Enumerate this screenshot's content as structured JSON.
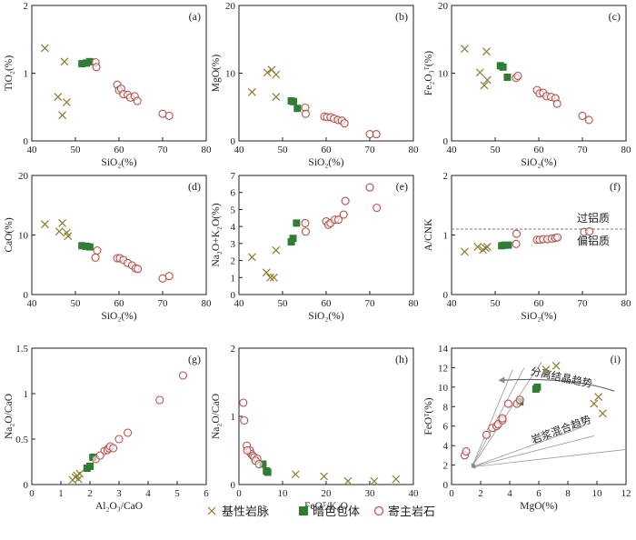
{
  "colors": {
    "basic_vein": "#8b7a2e",
    "dark_enclave": "#2e7d32",
    "host_rock": "#b5514b",
    "axis": "#222222",
    "trend_arrow": "#9a9a9a"
  },
  "legend": [
    {
      "label": "基性岩脉",
      "marker": "x"
    },
    {
      "label": "暗色包体",
      "marker": "square"
    },
    {
      "label": "寄主岩石",
      "marker": "circle"
    }
  ],
  "chart_data": [
    {
      "type": "scatter",
      "panel": "(a)",
      "xlabel": "SiO₂(%)",
      "ylabel": "TiO₂(%)",
      "xlim": [
        40,
        80
      ],
      "ylim": [
        0,
        2
      ],
      "xticks": [
        40,
        50,
        60,
        70,
        80
      ],
      "yticks": [
        0,
        1,
        2
      ],
      "series": [
        {
          "name": "基性岩脉",
          "points": [
            [
              43,
              1.37
            ],
            [
              46,
              0.65
            ],
            [
              47,
              0.38
            ],
            [
              47.5,
              1.17
            ],
            [
              48,
              0.57
            ]
          ]
        },
        {
          "name": "暗色包体",
          "points": [
            [
              51.5,
              1.14
            ],
            [
              52.5,
              1.15
            ],
            [
              53.3,
              1.17
            ]
          ]
        },
        {
          "name": "寄主岩石",
          "points": [
            [
              54.6,
              1.16
            ],
            [
              54.8,
              1.09
            ],
            [
              59.6,
              0.83
            ],
            [
              60,
              0.75
            ],
            [
              60.5,
              0.77
            ],
            [
              61,
              0.69
            ],
            [
              62,
              0.68
            ],
            [
              62.6,
              0.64
            ],
            [
              63.6,
              0.66
            ],
            [
              64.2,
              0.59
            ],
            [
              70,
              0.4
            ],
            [
              71.5,
              0.37
            ]
          ]
        }
      ]
    },
    {
      "type": "scatter",
      "panel": "(b)",
      "xlabel": "SiO₂(%)",
      "ylabel": "MgO(%)",
      "xlim": [
        40,
        80
      ],
      "ylim": [
        0,
        20
      ],
      "xticks": [
        40,
        50,
        60,
        70,
        80
      ],
      "yticks": [
        0,
        10,
        20
      ],
      "series": [
        {
          "name": "基性岩脉",
          "points": [
            [
              43,
              7.2
            ],
            [
              46.5,
              10.1
            ],
            [
              47.5,
              10.5
            ],
            [
              48.5,
              9.8
            ],
            [
              48.5,
              6.5
            ]
          ]
        },
        {
          "name": "暗色包体",
          "points": [
            [
              52,
              5.9
            ],
            [
              52.5,
              5.8
            ],
            [
              53.4,
              4.8
            ]
          ]
        },
        {
          "name": "寄主岩石",
          "points": [
            [
              55.2,
              4.9
            ],
            [
              55.3,
              4.0
            ],
            [
              59.6,
              3.6
            ],
            [
              60.2,
              3.5
            ],
            [
              61,
              3.5
            ],
            [
              61.8,
              3.3
            ],
            [
              62.7,
              3.1
            ],
            [
              63.6,
              3.0
            ],
            [
              64.2,
              2.6
            ],
            [
              70,
              1.0
            ],
            [
              71.5,
              1.0
            ]
          ]
        }
      ]
    },
    {
      "type": "scatter",
      "panel": "(c)",
      "xlabel": "SiO₂(%)",
      "ylabel": "Fe₂O₃ᵀ(%)",
      "xlim": [
        40,
        80
      ],
      "ylim": [
        0,
        20
      ],
      "xticks": [
        40,
        50,
        60,
        70,
        80
      ],
      "yticks": [
        0,
        10,
        20
      ],
      "series": [
        {
          "name": "基性岩脉",
          "points": [
            [
              43,
              13.6
            ],
            [
              46.5,
              10.1
            ],
            [
              47.5,
              8.2
            ],
            [
              48,
              13.2
            ],
            [
              48.2,
              9.0
            ]
          ]
        },
        {
          "name": "暗色包体",
          "points": [
            [
              51.2,
              11.1
            ],
            [
              51.8,
              10.9
            ],
            [
              52.8,
              9.4
            ]
          ]
        },
        {
          "name": "寄主岩石",
          "points": [
            [
              54.8,
              9.3
            ],
            [
              55.2,
              9.6
            ],
            [
              59.6,
              7.5
            ],
            [
              60.2,
              7.0
            ],
            [
              61,
              7.1
            ],
            [
              61.8,
              6.6
            ],
            [
              62.8,
              6.5
            ],
            [
              63.8,
              6.3
            ],
            [
              64.2,
              5.5
            ],
            [
              70,
              3.7
            ],
            [
              71.5,
              3.1
            ]
          ]
        }
      ]
    },
    {
      "type": "scatter",
      "panel": "(d)",
      "xlabel": "SiO₂(%)",
      "ylabel": "CaO(%)",
      "xlim": [
        40,
        80
      ],
      "ylim": [
        0,
        20
      ],
      "xticks": [
        40,
        50,
        60,
        70,
        80
      ],
      "yticks": [
        0,
        10,
        20
      ],
      "series": [
        {
          "name": "基性岩脉",
          "points": [
            [
              43,
              11.8
            ],
            [
              46.3,
              10.6
            ],
            [
              47,
              12.0
            ],
            [
              48,
              10.4
            ],
            [
              48.3,
              9.8
            ]
          ]
        },
        {
          "name": "暗色包体",
          "points": [
            [
              51.5,
              8.2
            ],
            [
              52.5,
              8.1
            ],
            [
              53.3,
              8.0
            ]
          ]
        },
        {
          "name": "寄主岩石",
          "points": [
            [
              54.6,
              6.2
            ],
            [
              55,
              7.4
            ],
            [
              59.6,
              6.1
            ],
            [
              60.2,
              6.1
            ],
            [
              61,
              5.8
            ],
            [
              62,
              5.3
            ],
            [
              63,
              4.9
            ],
            [
              63.8,
              4.4
            ],
            [
              64.3,
              4.3
            ],
            [
              70,
              2.7
            ],
            [
              71.5,
              3.1
            ]
          ]
        }
      ]
    },
    {
      "type": "scatter",
      "panel": "(e)",
      "xlabel": "SiO₂(%)",
      "ylabel": "Na₂O+K₂O(%)",
      "xlim": [
        40,
        80
      ],
      "ylim": [
        0,
        7
      ],
      "xticks": [
        40,
        50,
        60,
        70,
        80
      ],
      "yticks": [
        0,
        1,
        2,
        3,
        4,
        5,
        6,
        7
      ],
      "series": [
        {
          "name": "基性岩脉",
          "points": [
            [
              43,
              2.2
            ],
            [
              46.3,
              1.3
            ],
            [
              47.2,
              1.0
            ],
            [
              48,
              1.0
            ],
            [
              48.5,
              2.6
            ]
          ]
        },
        {
          "name": "暗色包体",
          "points": [
            [
              52,
              3.1
            ],
            [
              52.4,
              3.3
            ],
            [
              53.2,
              4.2
            ]
          ]
        },
        {
          "name": "寄主岩石",
          "points": [
            [
              55.2,
              4.2
            ],
            [
              55.3,
              3.7
            ],
            [
              60,
              4.3
            ],
            [
              60.5,
              4.1
            ],
            [
              61,
              4.2
            ],
            [
              62,
              4.4
            ],
            [
              62.8,
              4.4
            ],
            [
              64,
              4.7
            ],
            [
              64.4,
              5.5
            ],
            [
              70,
              6.3
            ],
            [
              71.6,
              5.1
            ]
          ]
        }
      ]
    },
    {
      "type": "scatter",
      "panel": "(f)",
      "xlabel": "SiO₂(%)",
      "ylabel": "A/CNK",
      "xlim": [
        40,
        80
      ],
      "ylim": [
        0,
        2
      ],
      "xticks": [
        40,
        50,
        60,
        70,
        80
      ],
      "yticks": [
        0,
        1,
        2
      ],
      "reference_line": {
        "y": 1.1,
        "label_above": "过铝质",
        "label_below": "偏铝质"
      },
      "series": [
        {
          "name": "基性岩脉",
          "points": [
            [
              43,
              0.72
            ],
            [
              46,
              0.8
            ],
            [
              47.2,
              0.75
            ],
            [
              47.8,
              0.78
            ],
            [
              48.2,
              0.8
            ]
          ]
        },
        {
          "name": "暗色包体",
          "points": [
            [
              51.5,
              0.82
            ],
            [
              52.2,
              0.83
            ],
            [
              53,
              0.83
            ]
          ]
        },
        {
          "name": "寄主岩石",
          "points": [
            [
              54.8,
              0.85
            ],
            [
              54.9,
              1.02
            ],
            [
              59.6,
              0.92
            ],
            [
              60.2,
              0.92
            ],
            [
              61,
              0.93
            ],
            [
              62,
              0.93
            ],
            [
              63,
              0.94
            ],
            [
              63.8,
              0.95
            ],
            [
              64.3,
              0.96
            ],
            [
              70.4,
              1.05
            ],
            [
              71.6,
              1.06
            ]
          ]
        }
      ]
    },
    {
      "type": "scatter",
      "panel": "(g)",
      "xlabel": "Al₂O₃/CaO",
      "ylabel": "Na₂O/CaO",
      "xlim": [
        0,
        6
      ],
      "ylim": [
        0,
        1.5
      ],
      "xticks": [
        0,
        1,
        2,
        3,
        4,
        5,
        6
      ],
      "yticks": [
        0,
        0.5,
        1,
        1.5
      ],
      "series": [
        {
          "name": "基性岩脉",
          "points": [
            [
              1.4,
              0.05
            ],
            [
              1.5,
              0.08
            ],
            [
              1.55,
              0.1
            ],
            [
              1.6,
              0.06
            ],
            [
              1.65,
              0.12
            ]
          ]
        },
        {
          "name": "暗色包体",
          "points": [
            [
              1.9,
              0.18
            ],
            [
              2.0,
              0.2
            ],
            [
              2.1,
              0.3
            ]
          ]
        },
        {
          "name": "寄主岩石",
          "points": [
            [
              2.2,
              0.28
            ],
            [
              2.5,
              0.37
            ],
            [
              2.6,
              0.38
            ],
            [
              2.65,
              0.4
            ],
            [
              2.7,
              0.42
            ],
            [
              2.8,
              0.4
            ],
            [
              3.0,
              0.5
            ],
            [
              3.3,
              0.57
            ],
            [
              4.4,
              0.93
            ],
            [
              5.2,
              1.2
            ],
            [
              2.35,
              0.32
            ]
          ]
        }
      ]
    },
    {
      "type": "scatter",
      "panel": "(h)",
      "xlabel": "FeOᵀ/K₂O",
      "ylabel": "Na₂O/CaO",
      "xlim": [
        0,
        40
      ],
      "ylim": [
        0,
        2
      ],
      "xticks": [
        0,
        10,
        20,
        30,
        40
      ],
      "yticks": [
        0,
        1,
        2
      ],
      "series": [
        {
          "name": "基性岩脉",
          "points": [
            [
              13,
              0.15
            ],
            [
              19.5,
              0.12
            ],
            [
              25,
              0.05
            ],
            [
              31,
              0.05
            ],
            [
              36,
              0.08
            ]
          ]
        },
        {
          "name": "暗色包体",
          "points": [
            [
              5.5,
              0.3
            ],
            [
              6.3,
              0.2
            ],
            [
              6.6,
              0.18
            ]
          ]
        },
        {
          "name": "寄主岩石",
          "points": [
            [
              1,
              1.2
            ],
            [
              1.2,
              0.94
            ],
            [
              1.8,
              0.57
            ],
            [
              2.5,
              0.5
            ],
            [
              2.8,
              0.45
            ],
            [
              3.2,
              0.42
            ],
            [
              3.5,
              0.4
            ],
            [
              4.2,
              0.38
            ],
            [
              1.9,
              0.5
            ],
            [
              3.8,
              0.35
            ],
            [
              4.6,
              0.3
            ]
          ]
        }
      ]
    },
    {
      "type": "scatter",
      "panel": "(i)",
      "xlabel": "MgO(%)",
      "ylabel": "FeOᵀ(%)",
      "xlim": [
        0,
        12
      ],
      "ylim": [
        0,
        14
      ],
      "xticks": [
        0,
        2,
        4,
        6,
        8,
        10,
        12
      ],
      "yticks": [
        0,
        2,
        4,
        6,
        8,
        10,
        12,
        14
      ],
      "annotations": [
        "分离结晶趋势",
        "岩浆混合趋势"
      ],
      "series": [
        {
          "name": "基性岩脉",
          "points": [
            [
              6.5,
              11.8
            ],
            [
              7.2,
              12.2
            ],
            [
              9.8,
              8.3
            ],
            [
              10.1,
              9.0
            ],
            [
              10.4,
              7.3
            ]
          ]
        },
        {
          "name": "暗色包体",
          "points": [
            [
              4.7,
              8.5
            ],
            [
              5.8,
              9.8
            ],
            [
              5.9,
              10.0
            ]
          ]
        },
        {
          "name": "寄主岩石",
          "points": [
            [
              0.9,
              3.0
            ],
            [
              1.0,
              3.4
            ],
            [
              2.4,
              5.1
            ],
            [
              2.8,
              5.8
            ],
            [
              3.1,
              6.0
            ],
            [
              3.2,
              6.2
            ],
            [
              3.5,
              6.6
            ],
            [
              3.5,
              6.8
            ],
            [
              3.9,
              8.3
            ],
            [
              4.5,
              8.3
            ],
            [
              4.7,
              8.7
            ]
          ]
        }
      ]
    }
  ]
}
